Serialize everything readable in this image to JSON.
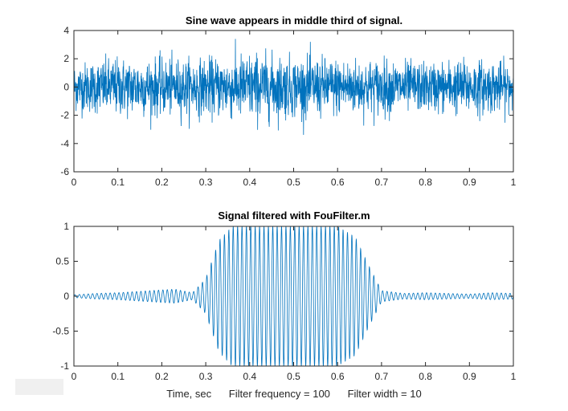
{
  "chart_data": [
    {
      "type": "line",
      "title": "Sine wave appears in middle third of signal.",
      "xlabel": "",
      "ylabel": "",
      "xlim": [
        0,
        1
      ],
      "ylim": [
        -6,
        4
      ],
      "xticks": [
        "0",
        "0.1",
        "0.2",
        "0.3",
        "0.4",
        "0.5",
        "0.6",
        "0.7",
        "0.8",
        "0.9",
        "1"
      ],
      "yticks": [
        "-6",
        "-4",
        "-2",
        "0",
        "2",
        "4"
      ],
      "grid": false,
      "series": [
        {
          "color": "#0072bd",
          "description": "noisy signal, dense random noise around 0 with peaks reaching about +3.5 and -4.3 across the full range",
          "envelope": [
            {
              "x": 0.0,
              "min": -2.5,
              "max": 2.8
            },
            {
              "x": 0.1,
              "min": -3.4,
              "max": 3.1
            },
            {
              "x": 0.2,
              "min": -2.9,
              "max": 3.3
            },
            {
              "x": 0.3,
              "min": -3.0,
              "max": 3.2
            },
            {
              "x": 0.4,
              "min": -4.1,
              "max": 3.5
            },
            {
              "x": 0.5,
              "min": -3.5,
              "max": 3.2
            },
            {
              "x": 0.6,
              "min": -3.0,
              "max": 3.4
            },
            {
              "x": 0.7,
              "min": -3.1,
              "max": 3.0
            },
            {
              "x": 0.8,
              "min": -2.6,
              "max": 2.8
            },
            {
              "x": 0.9,
              "min": -2.9,
              "max": 3.3
            },
            {
              "x": 1.0,
              "min": -2.7,
              "max": 2.6
            }
          ]
        }
      ]
    },
    {
      "type": "line",
      "title": "Signal filtered with FouFilter.m",
      "xlabel": "Time, sec      Filter frequency = 100      Filter width = 10",
      "ylabel": "",
      "xlim": [
        0,
        1
      ],
      "ylim": [
        -1,
        1
      ],
      "xticks": [
        "0",
        "0.1",
        "0.2",
        "0.3",
        "0.4",
        "0.5",
        "0.6",
        "0.7",
        "0.8",
        "0.9",
        "1"
      ],
      "yticks": [
        "-1",
        "-0.5",
        "0",
        "0.5",
        "1"
      ],
      "grid": false,
      "series": [
        {
          "color": "#0072bd",
          "oscillation_frequency_hz": 100,
          "amplitude_envelope": [
            {
              "x": 0.0,
              "amp": 0.02
            },
            {
              "x": 0.05,
              "amp": 0.04
            },
            {
              "x": 0.1,
              "amp": 0.05
            },
            {
              "x": 0.15,
              "amp": 0.07
            },
            {
              "x": 0.2,
              "amp": 0.09
            },
            {
              "x": 0.23,
              "amp": 0.1
            },
            {
              "x": 0.27,
              "amp": 0.05
            },
            {
              "x": 0.3,
              "amp": 0.25
            },
            {
              "x": 0.33,
              "amp": 0.8
            },
            {
              "x": 0.36,
              "amp": 1.0
            },
            {
              "x": 0.4,
              "amp": 1.0
            },
            {
              "x": 0.5,
              "amp": 1.0
            },
            {
              "x": 0.6,
              "amp": 1.0
            },
            {
              "x": 0.64,
              "amp": 0.85
            },
            {
              "x": 0.67,
              "amp": 0.45
            },
            {
              "x": 0.7,
              "amp": 0.08
            },
            {
              "x": 0.75,
              "amp": 0.04
            },
            {
              "x": 0.8,
              "amp": 0.05
            },
            {
              "x": 0.85,
              "amp": 0.04
            },
            {
              "x": 0.9,
              "amp": 0.03
            },
            {
              "x": 0.95,
              "amp": 0.05
            },
            {
              "x": 1.0,
              "amp": 0.04
            }
          ]
        }
      ]
    }
  ]
}
